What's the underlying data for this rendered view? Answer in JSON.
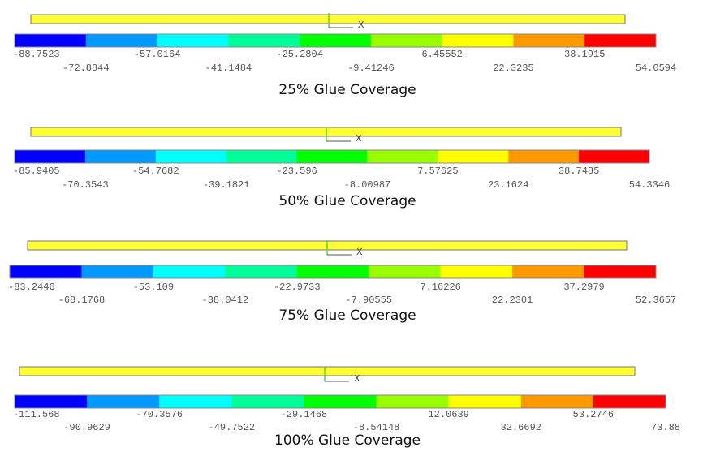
{
  "panels": [
    {
      "caption": "25% Glue Coverage",
      "axis_label": "X",
      "legend_labels": [
        "-88.7523",
        "-72.8844",
        "-57.0164",
        "-41.1484",
        "-25.2804",
        "-9.41246",
        "6.45552",
        "22.3235",
        "38.1915",
        "54.0594"
      ]
    },
    {
      "caption": "50% Glue Coverage",
      "axis_label": "X",
      "legend_labels": [
        "-85.9405",
        "-70.3543",
        "-54.7682",
        "-39.1821",
        "-23.596",
        "-8.00987",
        "7.57625",
        "23.1624",
        "38.7485",
        "54.3346"
      ]
    },
    {
      "caption": "75% Glue Coverage",
      "axis_label": "X",
      "legend_labels": [
        "-83.2446",
        "-68.1768",
        "-53.109",
        "-38.0412",
        "-22.9733",
        "-7.90555",
        "7.16226",
        "22.2301",
        "37.2979",
        "52.3657"
      ]
    },
    {
      "caption": "100% Glue Coverage",
      "axis_label": "X",
      "legend_labels": [
        "-111.568",
        "-90.9629",
        "-70.3576",
        "-49.7522",
        "-29.1468",
        "-8.54148",
        "12.0639",
        "32.6692",
        "53.2746",
        "73.88"
      ]
    }
  ]
}
